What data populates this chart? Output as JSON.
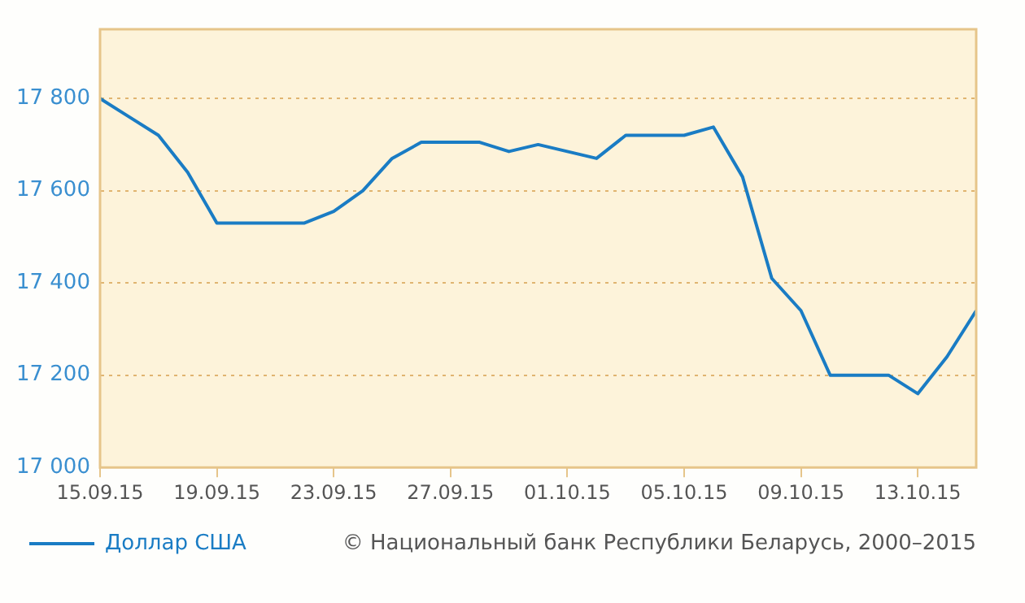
{
  "chart_data": {
    "type": "line",
    "x": [
      "2015-09-15",
      "2015-09-16",
      "2015-09-17",
      "2015-09-18",
      "2015-09-19",
      "2015-09-20",
      "2015-09-21",
      "2015-09-22",
      "2015-09-23",
      "2015-09-24",
      "2015-09-25",
      "2015-09-26",
      "2015-09-27",
      "2015-09-28",
      "2015-09-29",
      "2015-09-30",
      "2015-10-01",
      "2015-10-02",
      "2015-10-03",
      "2015-10-04",
      "2015-10-05",
      "2015-10-06",
      "2015-10-07",
      "2015-10-08",
      "2015-10-09",
      "2015-10-10",
      "2015-10-11",
      "2015-10-12",
      "2015-10-13",
      "2015-10-14",
      "2015-10-15"
    ],
    "series": [
      {
        "name": "Доллар США",
        "color": "#1a7cc4",
        "values": [
          17800,
          17760,
          17720,
          17640,
          17530,
          17530,
          17530,
          17530,
          17555,
          17600,
          17670,
          17705,
          17705,
          17705,
          17685,
          17700,
          17685,
          17670,
          17720,
          17720,
          17720,
          17738,
          17630,
          17410,
          17340,
          17200,
          17200,
          17200,
          17160,
          17240,
          17340
        ]
      }
    ],
    "xlim": [
      "2015-09-15",
      "2015-10-15"
    ],
    "xticks": [
      {
        "value": "2015-09-15",
        "label": "15.09.15"
      },
      {
        "value": "2015-09-19",
        "label": "19.09.15"
      },
      {
        "value": "2015-09-23",
        "label": "23.09.15"
      },
      {
        "value": "2015-09-27",
        "label": "27.09.15"
      },
      {
        "value": "2015-10-01",
        "label": "01.10.15"
      },
      {
        "value": "2015-10-05",
        "label": "05.10.15"
      },
      {
        "value": "2015-10-09",
        "label": "09.10.15"
      },
      {
        "value": "2015-10-13",
        "label": "13.10.15"
      }
    ],
    "ylim": [
      17000,
      17950
    ],
    "yticks": [
      {
        "value": 17000,
        "label": "17 000"
      },
      {
        "value": 17200,
        "label": "17 200"
      },
      {
        "value": 17400,
        "label": "17 400"
      },
      {
        "value": 17600,
        "label": "17 600"
      },
      {
        "value": 17800,
        "label": "17 800"
      }
    ],
    "grid": "y",
    "legend": "bottom",
    "marker": "none",
    "line_style": "solid",
    "annotations": [
      "© Национальный банк Республики Беларусь, 2000–2015"
    ]
  }
}
